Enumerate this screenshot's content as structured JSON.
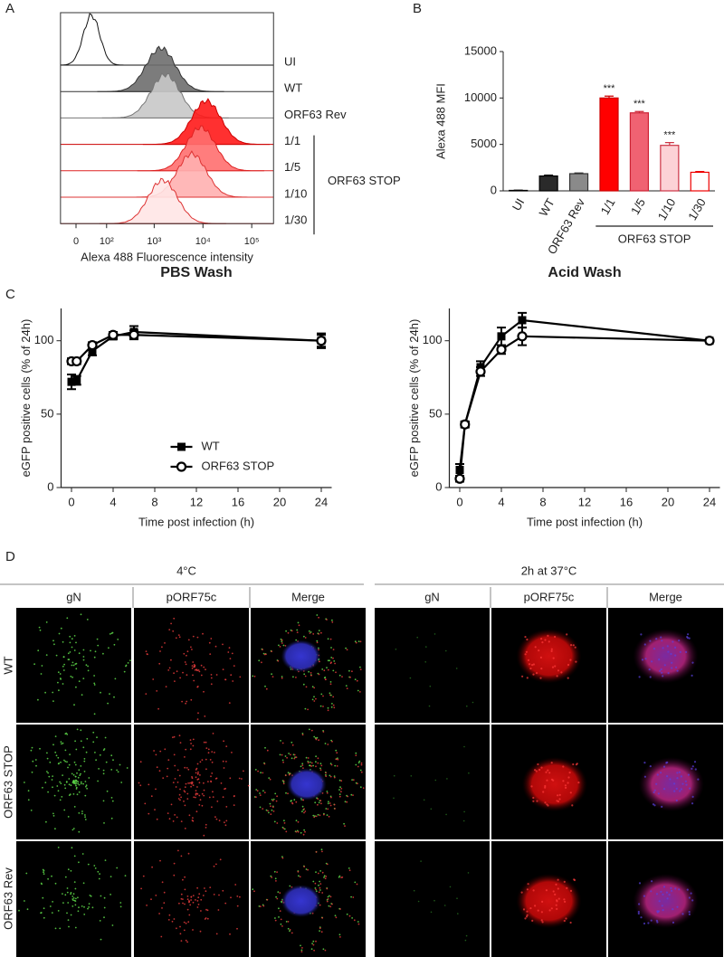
{
  "panel_labels": [
    "A",
    "B",
    "C",
    "D"
  ],
  "chart_data": [
    {
      "type": "histogram-overlay",
      "xlabel": "Alexa 488 Fluorescence intensity",
      "xscale": "logicle",
      "xlim": [
        -40,
        280000
      ],
      "xticks": [
        {
          "value": 0,
          "label": "0"
        },
        {
          "value": 100,
          "label": "10²"
        },
        {
          "value": 1000,
          "label": "10³"
        },
        {
          "value": 10000,
          "label": "10⁴"
        },
        {
          "value": 100000,
          "label": "10⁵"
        }
      ],
      "series": [
        {
          "name": "UI",
          "peak": 40,
          "color": "#ffffff",
          "edgecolor": "#111111"
        },
        {
          "name": "WT",
          "peak": 1360,
          "color": "#6e6e6e",
          "edgecolor": "#333333"
        },
        {
          "name": "ORF63 Rev",
          "peak": 1700,
          "color": "#c8c8c8",
          "edgecolor": "#777777"
        },
        {
          "name": "1/1",
          "peak": 11700,
          "color": "#ff1a1a",
          "edgecolor": "#cc0000"
        },
        {
          "name": "1/5",
          "peak": 9000,
          "color": "#ff6f6f",
          "edgecolor": "#dd2222"
        },
        {
          "name": "1/10",
          "peak": 5900,
          "color": "#ffb0b0",
          "edgecolor": "#dd3333"
        },
        {
          "name": "1/30",
          "peak": 1500,
          "color": "#ffe6e6",
          "edgecolor": "#dd3333"
        }
      ],
      "group_label": "ORF63 STOP"
    },
    {
      "type": "bar",
      "ylabel": "Alexa 488 MFI",
      "categories": [
        "UI",
        "WT",
        "ORF63 Rev",
        "1/1",
        "1/5",
        "1/10",
        "1/30"
      ],
      "values": [
        50,
        1600,
        1850,
        10000,
        8400,
        4900,
        2000
      ],
      "errors": [
        30,
        100,
        80,
        200,
        150,
        300,
        80
      ],
      "colors": [
        "#111111",
        "#2a2a2a",
        "#8a8a8a",
        "#ff0000",
        "#f06272",
        "#fcd2d6",
        "#ffffff"
      ],
      "edgecolors": [
        "#000000",
        "#000000",
        "#333333",
        "#cc0000",
        "#cc2233",
        "#cc3344",
        "#ee0000"
      ],
      "significance": [
        null,
        null,
        null,
        "***",
        "***",
        "***",
        null
      ],
      "ylim": [
        0,
        15000
      ],
      "yticks": [
        0,
        5000,
        10000,
        15000
      ],
      "group_label": "ORF63 STOP"
    },
    {
      "type": "line",
      "title": "PBS Wash",
      "xlabel": "Time post infection (h)",
      "ylabel": "eGFP positive cells (% of 24h)",
      "x": [
        0,
        0.5,
        2,
        4,
        6,
        24
      ],
      "series": [
        {
          "name": "WT",
          "marker": "square",
          "color": "#000000",
          "values": [
            72,
            73,
            93,
            103,
            106,
            100
          ],
          "errors": [
            5,
            3,
            3,
            2,
            4,
            5
          ]
        },
        {
          "name": "ORF63 STOP",
          "marker": "circle",
          "color": "#000000",
          "values": [
            86,
            86,
            97,
            104,
            104,
            100
          ],
          "errors": [
            2,
            2,
            2,
            2,
            3,
            4
          ]
        }
      ],
      "xlim": [
        -1,
        25
      ],
      "ylim": [
        0,
        122
      ],
      "xticks": [
        0,
        4,
        8,
        12,
        16,
        20,
        24
      ],
      "yticks": [
        0,
        50,
        100
      ],
      "legend": true
    },
    {
      "type": "line",
      "title": "Acid Wash",
      "xlabel": "Time post infection (h)",
      "ylabel": "eGFP positive cells (% of 24h)",
      "x": [
        0,
        0.5,
        2,
        4,
        6,
        24
      ],
      "series": [
        {
          "name": "WT",
          "marker": "square",
          "color": "#000000",
          "values": [
            12,
            43,
            82,
            103,
            114,
            100
          ],
          "errors": [
            4,
            2,
            4,
            6,
            5,
            1
          ]
        },
        {
          "name": "ORF63 STOP",
          "marker": "circle",
          "color": "#000000",
          "values": [
            6,
            43,
            79,
            94,
            103,
            100
          ],
          "errors": [
            2,
            2,
            3,
            3,
            6,
            1
          ]
        }
      ],
      "xlim": [
        -1,
        25
      ],
      "ylim": [
        0,
        122
      ],
      "xticks": [
        0,
        4,
        8,
        12,
        16,
        20,
        24
      ],
      "yticks": [
        0,
        50,
        100
      ],
      "legend": false
    }
  ],
  "images": {
    "conditions": [
      "4°C",
      "2h at 37°C"
    ],
    "channels": [
      "gN",
      "pORF75c",
      "Merge"
    ],
    "rows": [
      "WT",
      "ORF63 STOP",
      "ORF63 Rev"
    ]
  }
}
